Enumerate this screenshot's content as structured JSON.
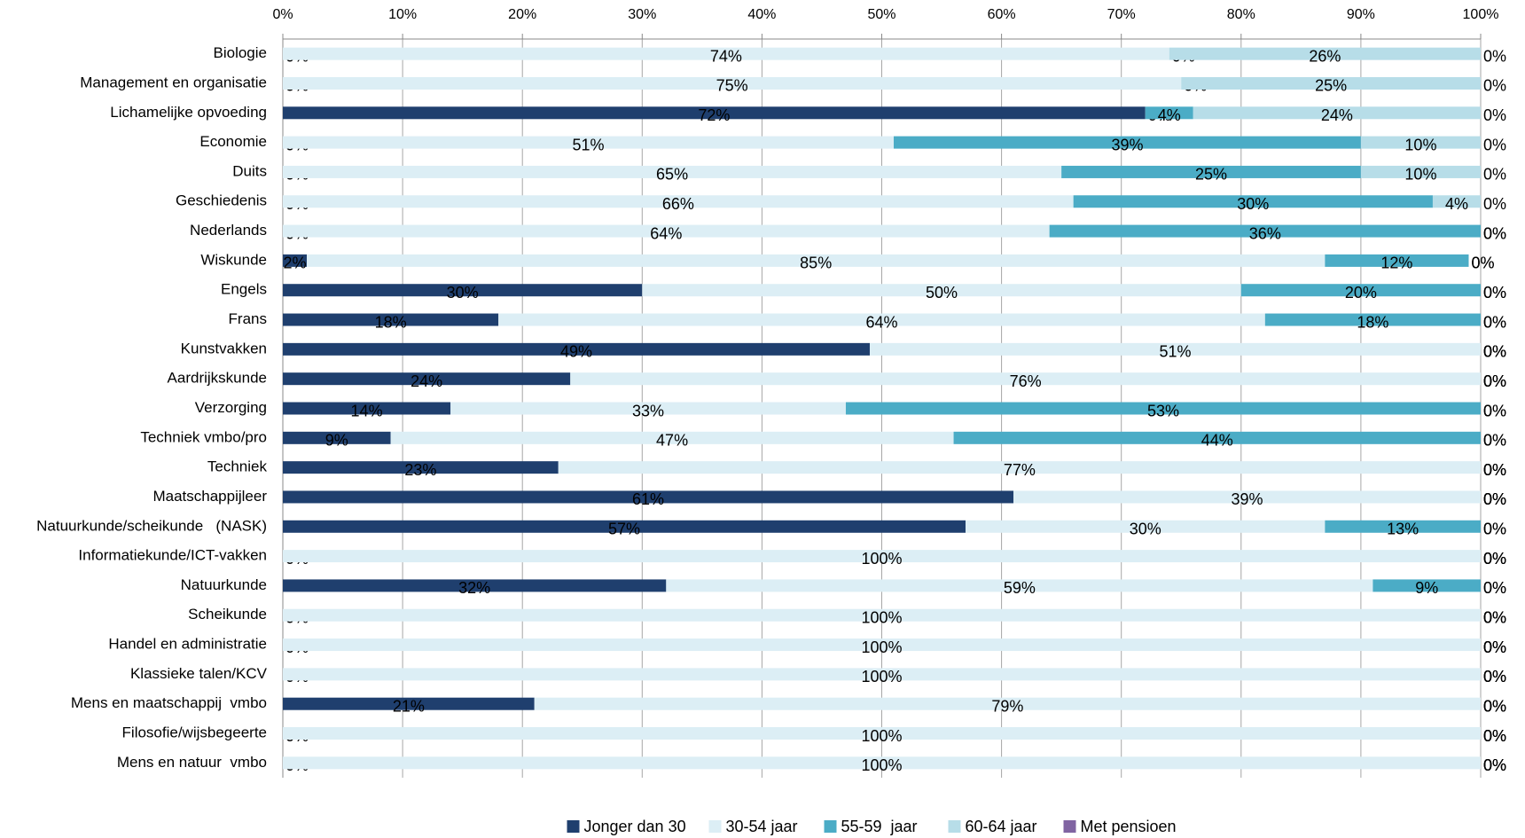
{
  "chart_data": {
    "type": "stacked_barh",
    "categories": [
      "Biologie",
      "Management en organisatie",
      "Lichamelijke opvoeding",
      "Economie",
      "Duits",
      "Geschiedenis",
      "Nederlands",
      "Wiskunde",
      "Engels",
      "Frans",
      "Kunstvakken",
      "Aardrijkskunde",
      "Verzorging",
      "Techniek vmbo/pro",
      "Techniek",
      "Maatschappijleer",
      "Natuurkunde/scheikunde   (NASK)",
      "Informatiekunde/ICT-vakken",
      "Natuurkunde",
      "Scheikunde",
      "Handel en administratie",
      "Klassieke talen/KCV",
      "Mens en maatschappij  vmbo",
      "Filosofie/wijsbegeerte",
      "Mens en natuur  vmbo"
    ],
    "series": [
      {
        "name": "Jonger dan 30",
        "color": "#1f3f6e",
        "values": [
          0,
          0,
          72,
          0,
          0,
          0,
          0,
          2,
          30,
          18,
          49,
          24,
          14,
          9,
          23,
          61,
          57,
          0,
          32,
          0,
          0,
          0,
          21,
          0,
          0
        ],
        "value_labels": [
          "0%",
          "0%",
          "72%",
          "0%",
          "0%",
          "0%",
          "0%",
          "2%",
          "30%",
          "18%",
          "49%",
          "24%",
          "14%",
          "9%",
          "23%",
          "61%",
          "57%",
          "0%",
          "32%",
          "0%",
          "0%",
          "0%",
          "21%",
          "0%",
          "0%"
        ]
      },
      {
        "name": "30-54 jaar",
        "color": "#dceef5",
        "values": [
          74,
          75,
          0,
          51,
          65,
          66,
          64,
          85,
          50,
          64,
          51,
          76,
          33,
          47,
          77,
          39,
          30,
          100,
          59,
          100,
          100,
          100,
          79,
          100,
          100
        ],
        "value_labels": [
          "74%",
          "75%",
          "0%",
          "51%",
          "65%",
          "66%",
          "64%",
          "85%",
          "50%",
          "64%",
          "51%",
          "76%",
          "33%",
          "47%",
          "77%",
          "39%",
          "30%",
          "100%",
          "59%",
          "100%",
          "100%",
          "100%",
          "79%",
          "100%",
          "100%"
        ]
      },
      {
        "name": "55-59  jaar",
        "color": "#4bacc6",
        "values": [
          0,
          0,
          4,
          39,
          25,
          30,
          36,
          12,
          20,
          18,
          0,
          0,
          53,
          44,
          0,
          0,
          13,
          0,
          9,
          0,
          0,
          0,
          0,
          0,
          0
        ],
        "value_labels": [
          "0%",
          "0%",
          "4%",
          "39%",
          "25%",
          "30%",
          "36%",
          "12%",
          "20%",
          "18%",
          "0%",
          "0%",
          "53%",
          "44%",
          "0%",
          "0%",
          "13%",
          "0%",
          "9%",
          "0%",
          "0%",
          "0%",
          "0%",
          "0%",
          "0%"
        ]
      },
      {
        "name": "60-64 jaar",
        "color": "#b7dde8",
        "values": [
          26,
          25,
          24,
          10,
          10,
          4,
          0,
          0,
          0,
          0,
          0,
          0,
          0,
          0,
          0,
          0,
          0,
          0,
          0,
          0,
          0,
          0,
          0,
          0,
          0
        ],
        "value_labels": [
          "26%",
          "25%",
          "24%",
          "10%",
          "10%",
          "4%",
          "0%",
          "0%",
          "0%",
          "0%",
          "0%",
          "0%",
          "0%",
          "0%",
          "0%",
          "0%",
          "0%",
          "0%",
          "0%",
          "0%",
          "0%",
          "0%",
          "0%",
          "0%",
          "0%"
        ]
      },
      {
        "name": "Met pensioen",
        "color": "#8064a2",
        "values": [
          0,
          0,
          0,
          0,
          0,
          0,
          0,
          0,
          0,
          0,
          0,
          0,
          0,
          0,
          0,
          0,
          0,
          0,
          0,
          0,
          0,
          0,
          0,
          0,
          0
        ],
        "value_labels": [
          "0%",
          "0%",
          "0%",
          "0%",
          "0%",
          "0%",
          "0%",
          "0%",
          "0%",
          "0%",
          "0%",
          "0%",
          "0%",
          "0%",
          "0%",
          "0%",
          "0%",
          "0%",
          "0%",
          "0%",
          "0%",
          "0%",
          "0%",
          "0%",
          "0%"
        ]
      }
    ],
    "xlim": [
      0,
      100
    ],
    "xticks": [
      {
        "value": 0,
        "label": "0%"
      },
      {
        "value": 10,
        "label": "10%"
      },
      {
        "value": 20,
        "label": "20%"
      },
      {
        "value": 30,
        "label": "30%"
      },
      {
        "value": 40,
        "label": "40%"
      },
      {
        "value": 50,
        "label": "50%"
      },
      {
        "value": 60,
        "label": "60%"
      },
      {
        "value": 70,
        "label": "70%"
      },
      {
        "value": 80,
        "label": "80%"
      },
      {
        "value": 90,
        "label": "90%"
      },
      {
        "value": 100,
        "label": "100%"
      }
    ],
    "grid": true,
    "legend": "bottom"
  }
}
